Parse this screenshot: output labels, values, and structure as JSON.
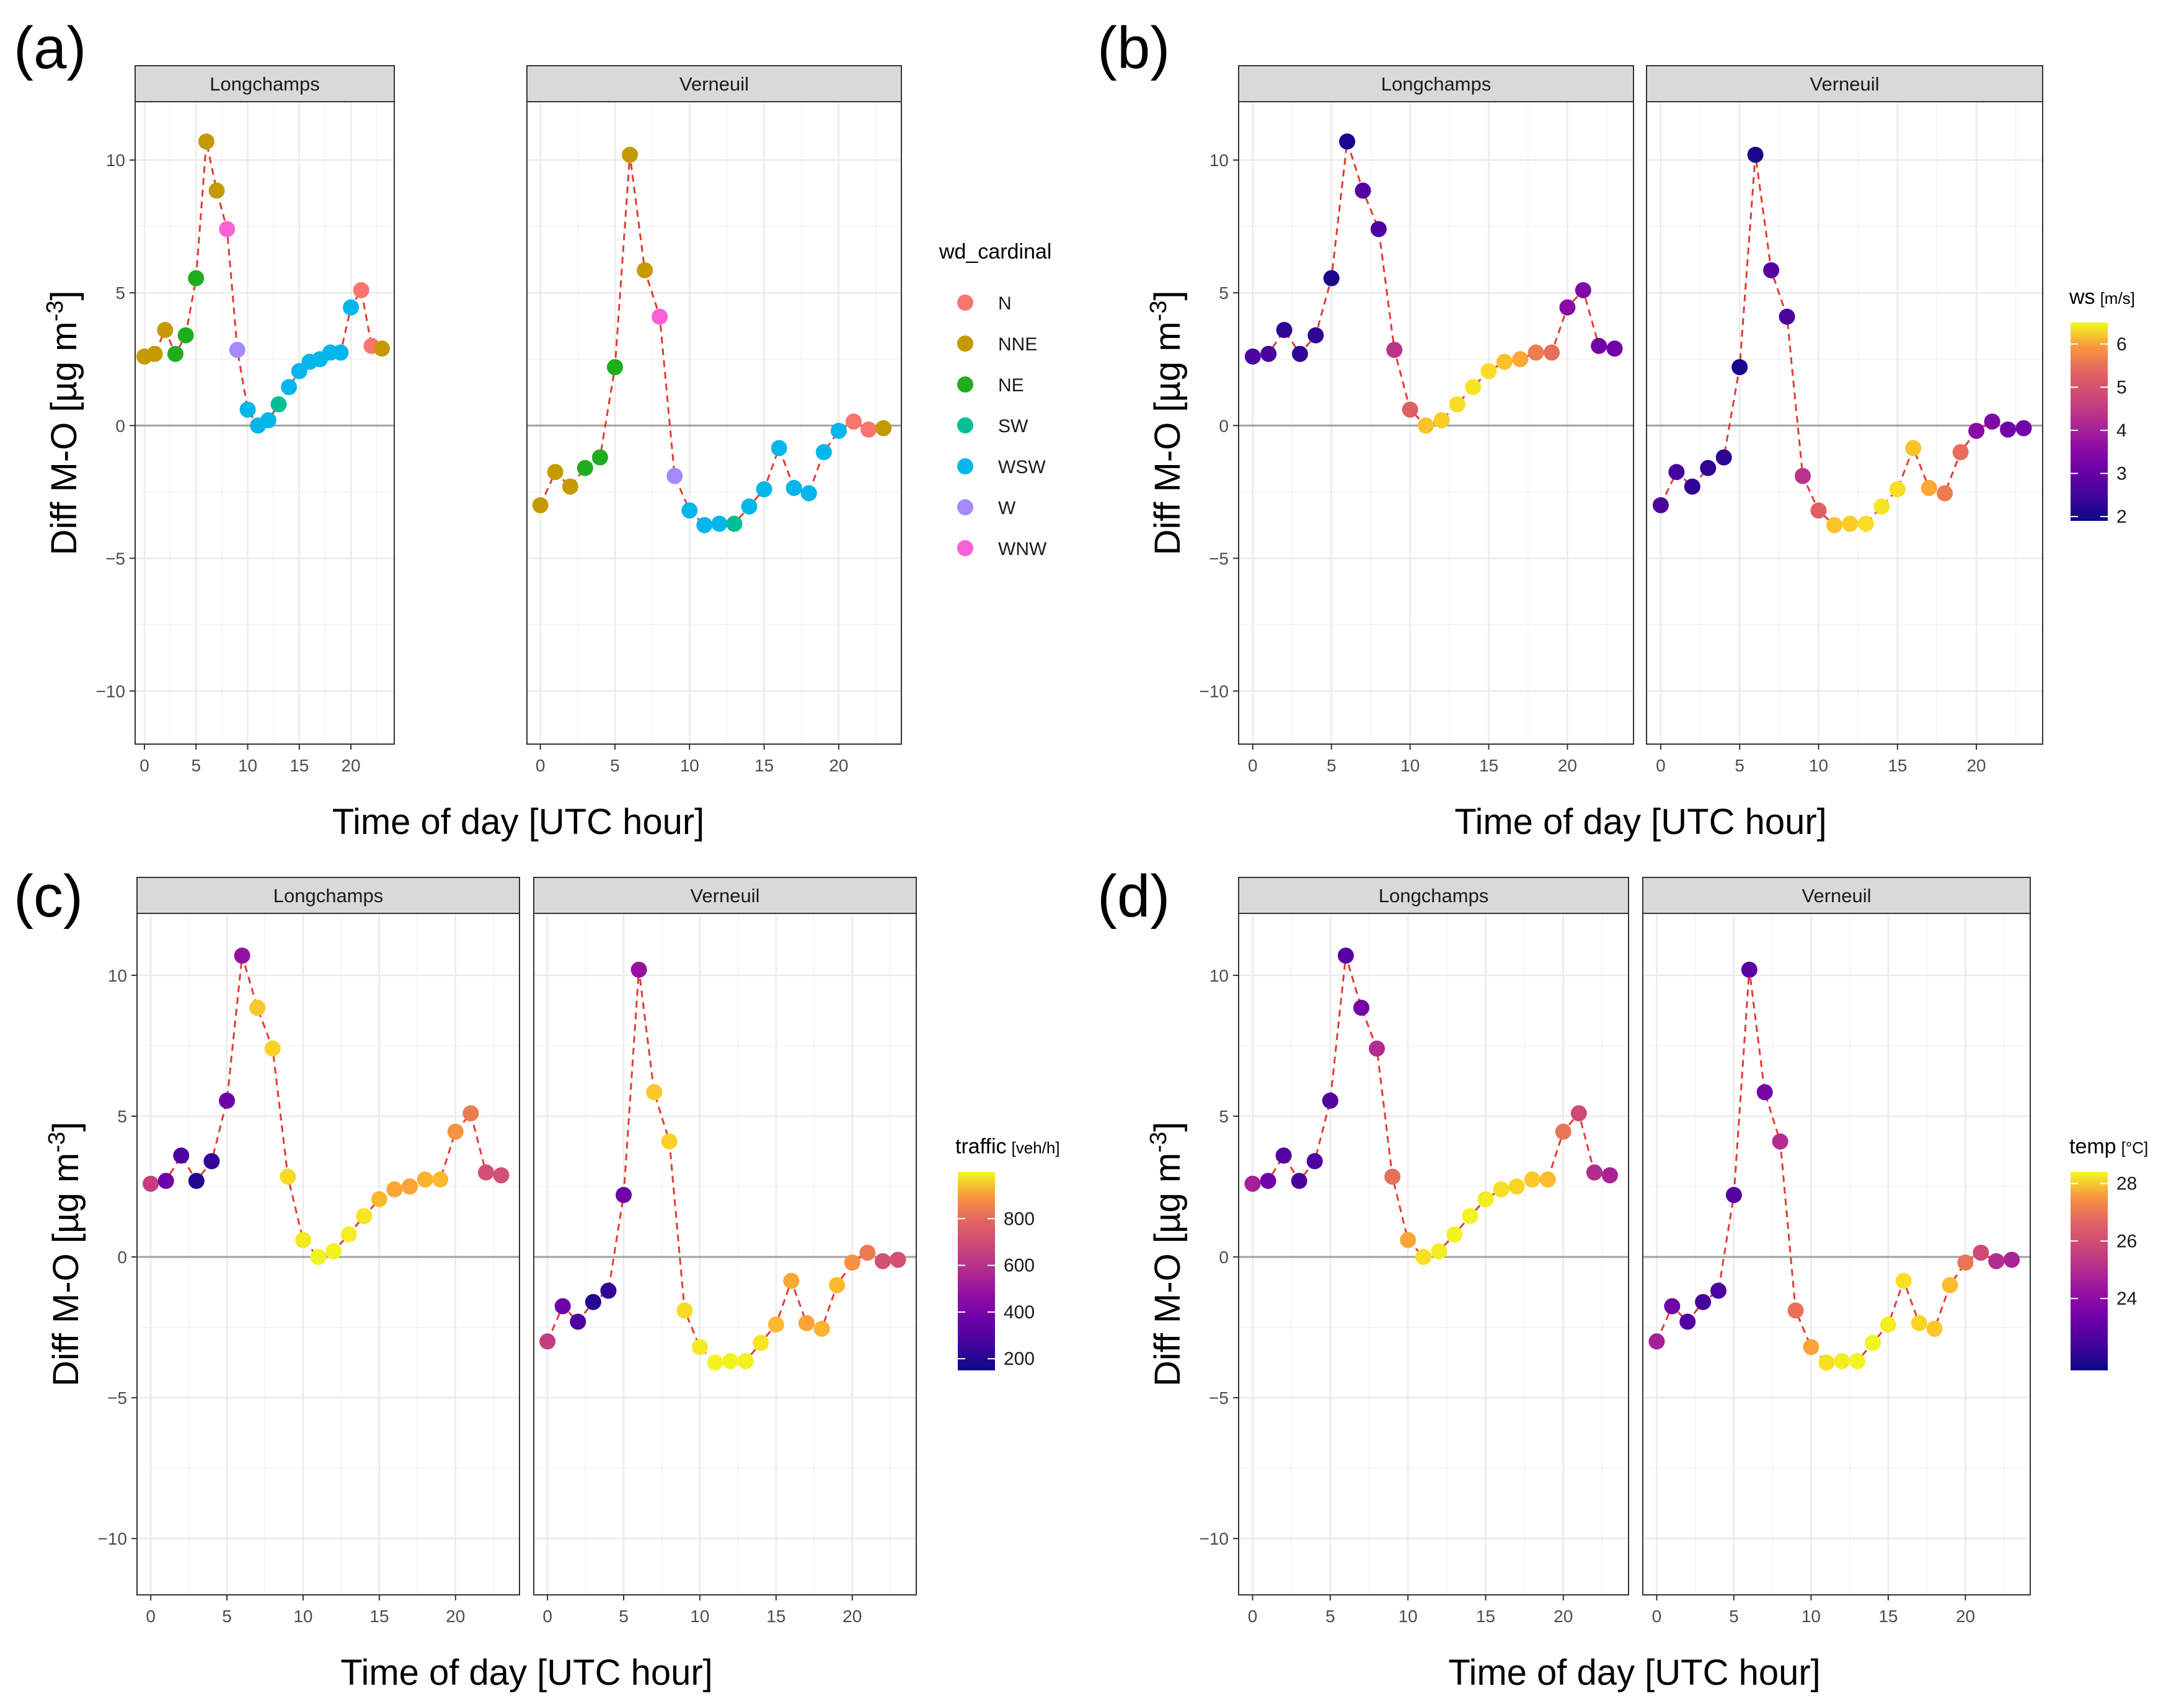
{
  "chart_data": {
    "type": "scatter",
    "xlabel": "Time of day [UTC hour]",
    "ylabel": "Diff M-O [µg m",
    "ylabel_sup": "-3",
    "ylabel_end": "]",
    "xlim": [
      -0.9,
      24.2
    ],
    "ylim": [
      -12,
      12.2
    ],
    "xticks": [
      0,
      5,
      10,
      15,
      20
    ],
    "yticks": [
      -10,
      -5,
      0,
      5,
      10
    ],
    "xtick_labels": [
      "0",
      "5",
      "10",
      "15",
      "20"
    ],
    "ytick_labels": [
      "−10",
      "−5",
      "0",
      "5",
      "10"
    ],
    "facets": [
      "Longchamps",
      "Verneuil"
    ],
    "hours": [
      0,
      1,
      2,
      3,
      4,
      5,
      6,
      7,
      8,
      9,
      10,
      11,
      12,
      13,
      14,
      15,
      16,
      17,
      18,
      19,
      20,
      21,
      22,
      23
    ],
    "series": [
      {
        "name": "Longchamps",
        "values": [
          2.6,
          2.7,
          3.6,
          2.7,
          3.4,
          5.55,
          10.7,
          8.85,
          7.4,
          2.85,
          0.6,
          0.0,
          0.2,
          0.8,
          1.45,
          2.05,
          2.4,
          2.5,
          2.75,
          2.75,
          4.45,
          5.1,
          3.0,
          2.9
        ]
      },
      {
        "name": "Verneuil",
        "values": [
          -3.0,
          -1.75,
          -2.3,
          -1.6,
          -1.2,
          2.2,
          10.2,
          5.85,
          4.1,
          -1.9,
          -3.2,
          -3.75,
          -3.7,
          -3.7,
          -3.05,
          -2.4,
          -0.85,
          -2.35,
          -2.55,
          -1.0,
          -0.2,
          0.15,
          -0.15,
          -0.1
        ]
      }
    ],
    "panels": [
      {
        "label": "(a)",
        "color_by": "wd_cardinal",
        "legend_type": "discrete",
        "legend_title": "wd_cardinal",
        "categories": [
          {
            "name": "N",
            "color": "#F8766D"
          },
          {
            "name": "NNE",
            "color": "#C49A00"
          },
          {
            "name": "NE",
            "color": "#1FAD1F"
          },
          {
            "name": "SW",
            "color": "#00C094"
          },
          {
            "name": "WSW",
            "color": "#00B6EB"
          },
          {
            "name": "W",
            "color": "#A58AFF"
          },
          {
            "name": "WNW",
            "color": "#FB61D7"
          }
        ],
        "point_categories": [
          [
            "NNE",
            "NNE",
            "NNE",
            "NE",
            "NE",
            "NE",
            "NNE",
            "NNE",
            "WNW",
            "W",
            "WSW",
            "WSW",
            "WSW",
            "SW",
            "WSW",
            "WSW",
            "WSW",
            "WSW",
            "WSW",
            "WSW",
            "WSW",
            "N",
            "N",
            "NNE"
          ],
          [
            "NNE",
            "NNE",
            "NNE",
            "NE",
            "NE",
            "NE",
            "NNE",
            "NNE",
            "WNW",
            "W",
            "WSW",
            "WSW",
            "WSW",
            "SW",
            "WSW",
            "WSW",
            "WSW",
            "WSW",
            "WSW",
            "WSW",
            "WSW",
            "N",
            "N",
            "NNE"
          ]
        ]
      },
      {
        "label": "(b)",
        "color_by": "ws",
        "legend_type": "continuous",
        "legend_title": "ws",
        "legend_unit": "[m/s]",
        "legend_range": [
          1.9,
          6.5
        ],
        "legend_ticks": [
          2,
          3,
          4,
          5,
          6
        ],
        "legend_tick_labels": [
          "2",
          "3",
          "4",
          "5",
          "6"
        ],
        "values": [
          [
            2.5,
            2.4,
            2.2,
            2.2,
            2.2,
            2.0,
            2.0,
            2.6,
            2.5,
            3.9,
            4.6,
            5.9,
            6.0,
            6.2,
            6.3,
            6.2,
            5.9,
            5.6,
            5.0,
            4.8,
            3.2,
            3.1,
            2.9,
            2.9
          ],
          [
            2.5,
            2.4,
            2.2,
            2.2,
            2.2,
            2.0,
            2.0,
            2.6,
            2.5,
            3.9,
            4.6,
            5.9,
            6.0,
            6.2,
            6.3,
            6.2,
            5.9,
            5.6,
            5.0,
            4.8,
            3.2,
            3.1,
            2.9,
            2.9
          ]
        ]
      },
      {
        "label": "(c)",
        "color_by": "traffic",
        "legend_type": "continuous",
        "legend_title": "traffic",
        "legend_unit": "[veh/h]",
        "legend_range": [
          150,
          1000
        ],
        "legend_ticks": [
          200,
          400,
          600,
          800
        ],
        "legend_tick_labels": [
          "200",
          "400",
          "600",
          "800"
        ],
        "values": [
          [
            550,
            330,
            260,
            190,
            210,
            330,
            420,
            900,
            920,
            940,
            970,
            990,
            990,
            980,
            960,
            870,
            830,
            820,
            860,
            870,
            780,
            720,
            600,
            600
          ],
          [
            550,
            330,
            260,
            190,
            210,
            330,
            420,
            900,
            920,
            940,
            970,
            990,
            990,
            980,
            960,
            870,
            830,
            820,
            860,
            870,
            780,
            720,
            600,
            600
          ]
        ]
      },
      {
        "label": "(d)",
        "color_by": "temp",
        "legend_type": "continuous",
        "legend_title": "temp",
        "legend_unit": "[°C]",
        "legend_range": [
          21.5,
          28.4
        ],
        "legend_ticks": [
          24,
          26,
          28
        ],
        "legend_tick_labels": [
          "24",
          "26",
          "28"
        ],
        "values": [
          [
            24.0,
            23.0,
            22.5,
            22.3,
            22.4,
            22.5,
            22.6,
            23.1,
            24.3,
            25.9,
            27.0,
            28.0,
            28.2,
            28.3,
            28.3,
            28.2,
            28.0,
            27.8,
            27.6,
            27.4,
            26.0,
            25.0,
            24.3,
            24.1
          ],
          [
            24.0,
            23.0,
            22.5,
            22.3,
            22.4,
            22.5,
            22.6,
            23.1,
            24.3,
            25.9,
            27.0,
            28.0,
            28.2,
            28.3,
            28.3,
            28.2,
            28.0,
            27.8,
            27.6,
            27.4,
            26.0,
            25.0,
            24.3,
            24.1
          ]
        ]
      }
    ]
  },
  "style": {
    "line_color": "#E03C31",
    "panel_background": "#FFFFFF",
    "grid_color": "#EBEBEB",
    "zero_line_color": "#A0A0A0",
    "strip_fill": "#D9D9D9",
    "border_color": "#333333"
  }
}
